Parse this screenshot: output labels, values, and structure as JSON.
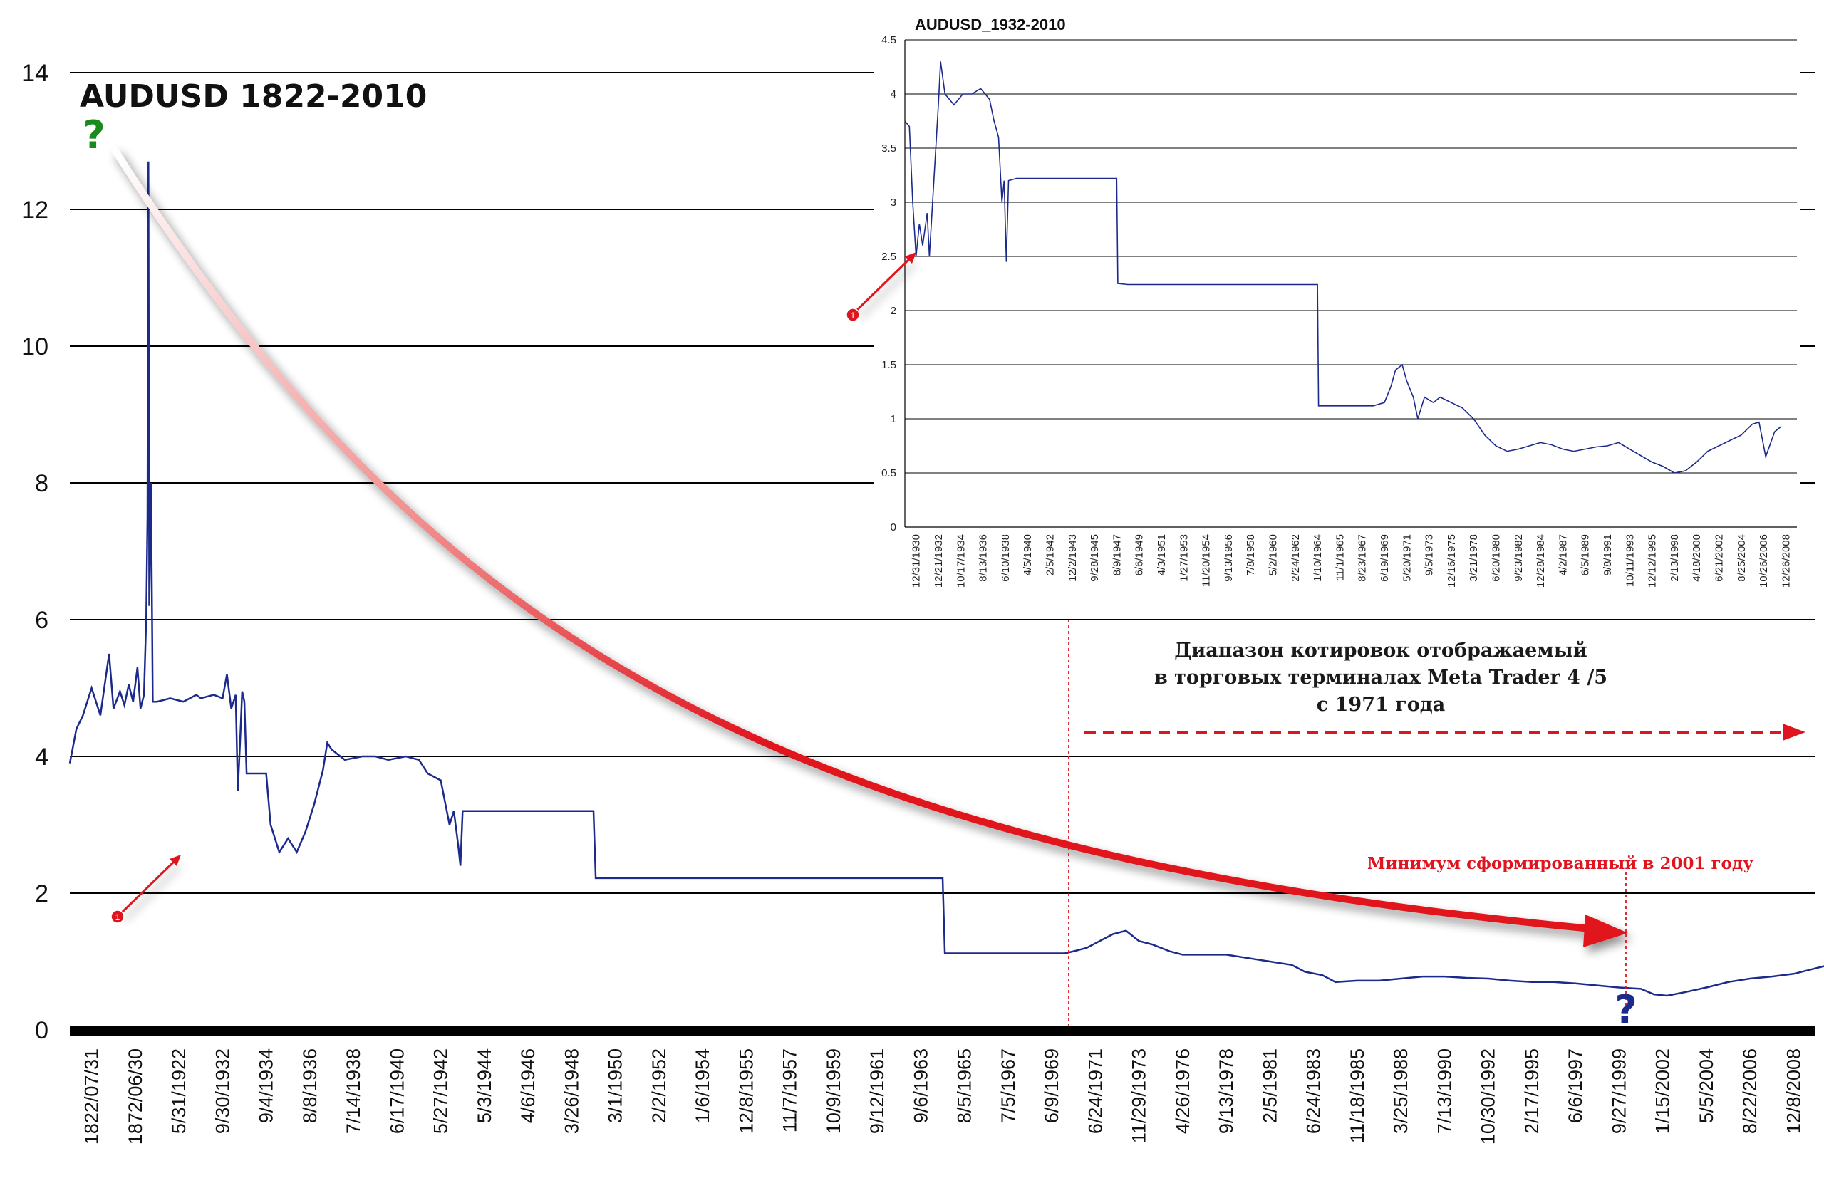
{
  "colors": {
    "series": "#1c2a8c",
    "arrow": "#e0141e",
    "grid": "#000000",
    "question_top": "#1a8a1a",
    "question_bottom": "#1c2a8c",
    "note_red": "#e0141e"
  },
  "chart_data": [
    {
      "type": "line",
      "title": "AUDUSD 1822-2010",
      "ylim": [
        0,
        14
      ],
      "yticks": [
        0,
        2,
        4,
        6,
        8,
        10,
        12,
        14
      ],
      "grid": true,
      "x_tick_labels": [
        "1822/07/31",
        "1872/06/30",
        "5/31/1922",
        "9/30/1932",
        "9/4/1934",
        "8/8/1936",
        "7/14/1938",
        "6/17/1940",
        "5/27/1942",
        "5/3/1944",
        "4/6/1946",
        "3/26/1948",
        "3/1/1950",
        "2/2/1952",
        "1/6/1954",
        "12/8/1955",
        "11/7/1957",
        "10/9/1959",
        "9/12/1961",
        "9/6/1963",
        "8/5/1965",
        "7/5/1967",
        "6/9/1969",
        "6/24/1971",
        "11/29/1973",
        "4/26/1976",
        "9/13/1978",
        "2/5/1981",
        "6/24/1983",
        "11/18/1985",
        "3/25/1988",
        "7/13/1990",
        "10/30/1992",
        "2/17/1995",
        "6/6/1997",
        "9/27/1999",
        "1/15/2002",
        "5/5/2004",
        "8/22/2006",
        "12/8/2008"
      ],
      "series": [
        {
          "points": [
            [
              0,
              3.9
            ],
            [
              0.15,
              4.4
            ],
            [
              0.3,
              4.6
            ],
            [
              0.5,
              5.0
            ],
            [
              0.7,
              4.6
            ],
            [
              0.9,
              5.5
            ],
            [
              1.0,
              4.7
            ],
            [
              1.15,
              4.95
            ],
            [
              1.25,
              4.75
            ],
            [
              1.35,
              5.05
            ],
            [
              1.45,
              4.8
            ],
            [
              1.55,
              5.3
            ],
            [
              1.62,
              4.7
            ],
            [
              1.7,
              4.9
            ],
            [
              1.75,
              6.0
            ],
            [
              1.78,
              7.5
            ],
            [
              1.8,
              12.7
            ],
            [
              1.82,
              6.2
            ],
            [
              1.86,
              8.0
            ],
            [
              1.9,
              4.8
            ],
            [
              2.0,
              4.8
            ],
            [
              2.3,
              4.85
            ],
            [
              2.6,
              4.8
            ],
            [
              2.9,
              4.9
            ],
            [
              3.0,
              4.85
            ],
            [
              3.3,
              4.9
            ],
            [
              3.5,
              4.85
            ],
            [
              3.6,
              5.2
            ],
            [
              3.7,
              4.7
            ],
            [
              3.8,
              4.9
            ],
            [
              3.85,
              3.5
            ],
            [
              3.9,
              4.2
            ],
            [
              3.95,
              4.95
            ],
            [
              4.0,
              4.8
            ],
            [
              4.05,
              3.75
            ],
            [
              4.3,
              3.75
            ],
            [
              4.5,
              3.75
            ],
            [
              4.6,
              3.0
            ],
            [
              4.8,
              2.6
            ],
            [
              5.0,
              2.8
            ],
            [
              5.2,
              2.6
            ],
            [
              5.4,
              2.9
            ],
            [
              5.6,
              3.3
            ],
            [
              5.8,
              3.8
            ],
            [
              5.9,
              4.2
            ],
            [
              6.0,
              4.1
            ],
            [
              6.3,
              3.95
            ],
            [
              6.7,
              4.0
            ],
            [
              7.0,
              4.0
            ],
            [
              7.3,
              3.95
            ],
            [
              7.7,
              4.0
            ],
            [
              8.0,
              3.95
            ],
            [
              8.2,
              3.75
            ],
            [
              8.5,
              3.65
            ],
            [
              8.7,
              3.0
            ],
            [
              8.8,
              3.2
            ],
            [
              8.9,
              2.7
            ],
            [
              8.95,
              2.4
            ],
            [
              9.0,
              3.2
            ],
            [
              9.2,
              3.2
            ],
            [
              10,
              3.2
            ],
            [
              11,
              3.2
            ],
            [
              12,
              3.2
            ],
            [
              12.05,
              2.22
            ],
            [
              13,
              2.22
            ],
            [
              14,
              2.22
            ],
            [
              15,
              2.22
            ],
            [
              16,
              2.22
            ],
            [
              17,
              2.22
            ],
            [
              18,
              2.22
            ],
            [
              19,
              2.22
            ],
            [
              20,
              2.22
            ],
            [
              20.05,
              1.12
            ],
            [
              21,
              1.12
            ],
            [
              22,
              1.12
            ],
            [
              22.8,
              1.12
            ],
            [
              23,
              1.15
            ],
            [
              23.3,
              1.2
            ],
            [
              23.6,
              1.3
            ],
            [
              23.9,
              1.4
            ],
            [
              24.2,
              1.45
            ],
            [
              24.5,
              1.3
            ],
            [
              24.8,
              1.25
            ],
            [
              25.2,
              1.15
            ],
            [
              25.5,
              1.1
            ],
            [
              26,
              1.1
            ],
            [
              26.5,
              1.1
            ],
            [
              27,
              1.05
            ],
            [
              27.5,
              1.0
            ],
            [
              28,
              0.95
            ],
            [
              28.3,
              0.85
            ],
            [
              28.7,
              0.8
            ],
            [
              29,
              0.7
            ],
            [
              29.5,
              0.72
            ],
            [
              30,
              0.72
            ],
            [
              30.5,
              0.75
            ],
            [
              31,
              0.78
            ],
            [
              31.5,
              0.78
            ],
            [
              32,
              0.76
            ],
            [
              32.5,
              0.75
            ],
            [
              33,
              0.72
            ],
            [
              33.5,
              0.7
            ],
            [
              34,
              0.7
            ],
            [
              34.5,
              0.68
            ],
            [
              35,
              0.65
            ],
            [
              35.5,
              0.62
            ],
            [
              36,
              0.6
            ],
            [
              36.3,
              0.52
            ],
            [
              36.6,
              0.5
            ],
            [
              37,
              0.55
            ],
            [
              37.5,
              0.62
            ],
            [
              38,
              0.7
            ],
            [
              38.5,
              0.75
            ],
            [
              39,
              0.78
            ],
            [
              39.5,
              0.82
            ],
            [
              40,
              0.9
            ],
            [
              40.5,
              0.98
            ],
            [
              40.8,
              0.65
            ],
            [
              41.2,
              0.88
            ],
            [
              41.6,
              0.92
            ],
            [
              42,
              0.93
            ]
          ]
        }
      ],
      "annotations": {
        "top_question": "?",
        "bottom_question": "?",
        "marker_number": "1",
        "mt_range_text": [
          "Диапазон котировок отображаемый",
          "в торговых терминалах  Meta Trader 4 /5",
          "с 1971 года"
        ],
        "minimum_text": "Минимум сформированный в 2001 году"
      }
    },
    {
      "type": "line",
      "title": "AUDUSD_1932-2010",
      "ylim": [
        0,
        4.5
      ],
      "ytick_labels": [
        "0",
        "0.5",
        "1",
        "1.5",
        "2",
        "2.5",
        "3",
        "3.5",
        "4",
        "4.5"
      ],
      "grid": true,
      "x_tick_labels": [
        "12/31/1930",
        "12/21/1932",
        "10/17/1934",
        "8/13/1936",
        "6/10/1938",
        "4/5/1940",
        "2/5/1942",
        "12/2/1943",
        "9/28/1945",
        "8/9/1947",
        "6/6/1949",
        "4/3/1951",
        "1/27/1953",
        "11/20/1954",
        "9/13/1956",
        "7/8/1958",
        "5/2/1960",
        "2/24/1962",
        "1/10/1964",
        "11/1/1965",
        "8/23/1967",
        "6/19/1969",
        "5/20/1971",
        "9/5/1973",
        "12/16/1975",
        "3/21/1978",
        "6/20/1980",
        "9/23/1982",
        "12/28/1984",
        "4/2/1987",
        "6/5/1989",
        "9/8/1991",
        "10/11/1993",
        "12/12/1995",
        "2/13/1998",
        "4/18/2000",
        "6/21/2002",
        "8/25/2004",
        "10/26/2006",
        "12/26/2008"
      ],
      "series": [
        {
          "points": [
            [
              0,
              3.75
            ],
            [
              0.2,
              3.7
            ],
            [
              0.35,
              3.0
            ],
            [
              0.5,
              2.5
            ],
            [
              0.65,
              2.8
            ],
            [
              0.8,
              2.6
            ],
            [
              1.0,
              2.9
            ],
            [
              1.1,
              2.5
            ],
            [
              1.3,
              3.2
            ],
            [
              1.5,
              3.9
            ],
            [
              1.6,
              4.3
            ],
            [
              1.8,
              4.0
            ],
            [
              2.2,
              3.9
            ],
            [
              2.6,
              4.0
            ],
            [
              3.0,
              4.0
            ],
            [
              3.4,
              4.05
            ],
            [
              3.8,
              3.95
            ],
            [
              4.0,
              3.75
            ],
            [
              4.2,
              3.6
            ],
            [
              4.35,
              3.0
            ],
            [
              4.45,
              3.2
            ],
            [
              4.55,
              2.45
            ],
            [
              4.65,
              3.2
            ],
            [
              5,
              3.22
            ],
            [
              6,
              3.22
            ],
            [
              7,
              3.22
            ],
            [
              8,
              3.22
            ],
            [
              9,
              3.22
            ],
            [
              9.5,
              3.22
            ],
            [
              9.55,
              2.25
            ],
            [
              10,
              2.24
            ],
            [
              11,
              2.24
            ],
            [
              12,
              2.24
            ],
            [
              13,
              2.24
            ],
            [
              14,
              2.24
            ],
            [
              15,
              2.24
            ],
            [
              16,
              2.24
            ],
            [
              17,
              2.24
            ],
            [
              18,
              2.24
            ],
            [
              18.5,
              2.24
            ],
            [
              18.55,
              1.12
            ],
            [
              19,
              1.12
            ],
            [
              20,
              1.12
            ],
            [
              21,
              1.12
            ],
            [
              21.5,
              1.15
            ],
            [
              21.8,
              1.3
            ],
            [
              22.0,
              1.45
            ],
            [
              22.3,
              1.5
            ],
            [
              22.5,
              1.35
            ],
            [
              22.8,
              1.2
            ],
            [
              23.0,
              1.0
            ],
            [
              23.3,
              1.2
            ],
            [
              23.7,
              1.15
            ],
            [
              24,
              1.2
            ],
            [
              24.5,
              1.15
            ],
            [
              25,
              1.1
            ],
            [
              25.5,
              1.0
            ],
            [
              26,
              0.85
            ],
            [
              26.5,
              0.75
            ],
            [
              27,
              0.7
            ],
            [
              27.5,
              0.72
            ],
            [
              28,
              0.75
            ],
            [
              28.5,
              0.78
            ],
            [
              29,
              0.76
            ],
            [
              29.5,
              0.72
            ],
            [
              30,
              0.7
            ],
            [
              30.5,
              0.72
            ],
            [
              31,
              0.74
            ],
            [
              31.5,
              0.75
            ],
            [
              32,
              0.78
            ],
            [
              32.5,
              0.72
            ],
            [
              33,
              0.66
            ],
            [
              33.5,
              0.6
            ],
            [
              34,
              0.56
            ],
            [
              34.5,
              0.5
            ],
            [
              35,
              0.52
            ],
            [
              35.5,
              0.6
            ],
            [
              36,
              0.7
            ],
            [
              36.5,
              0.75
            ],
            [
              37,
              0.8
            ],
            [
              37.5,
              0.85
            ],
            [
              38,
              0.95
            ],
            [
              38.3,
              0.97
            ],
            [
              38.6,
              0.65
            ],
            [
              39,
              0.88
            ],
            [
              39.3,
              0.93
            ]
          ]
        }
      ]
    }
  ]
}
